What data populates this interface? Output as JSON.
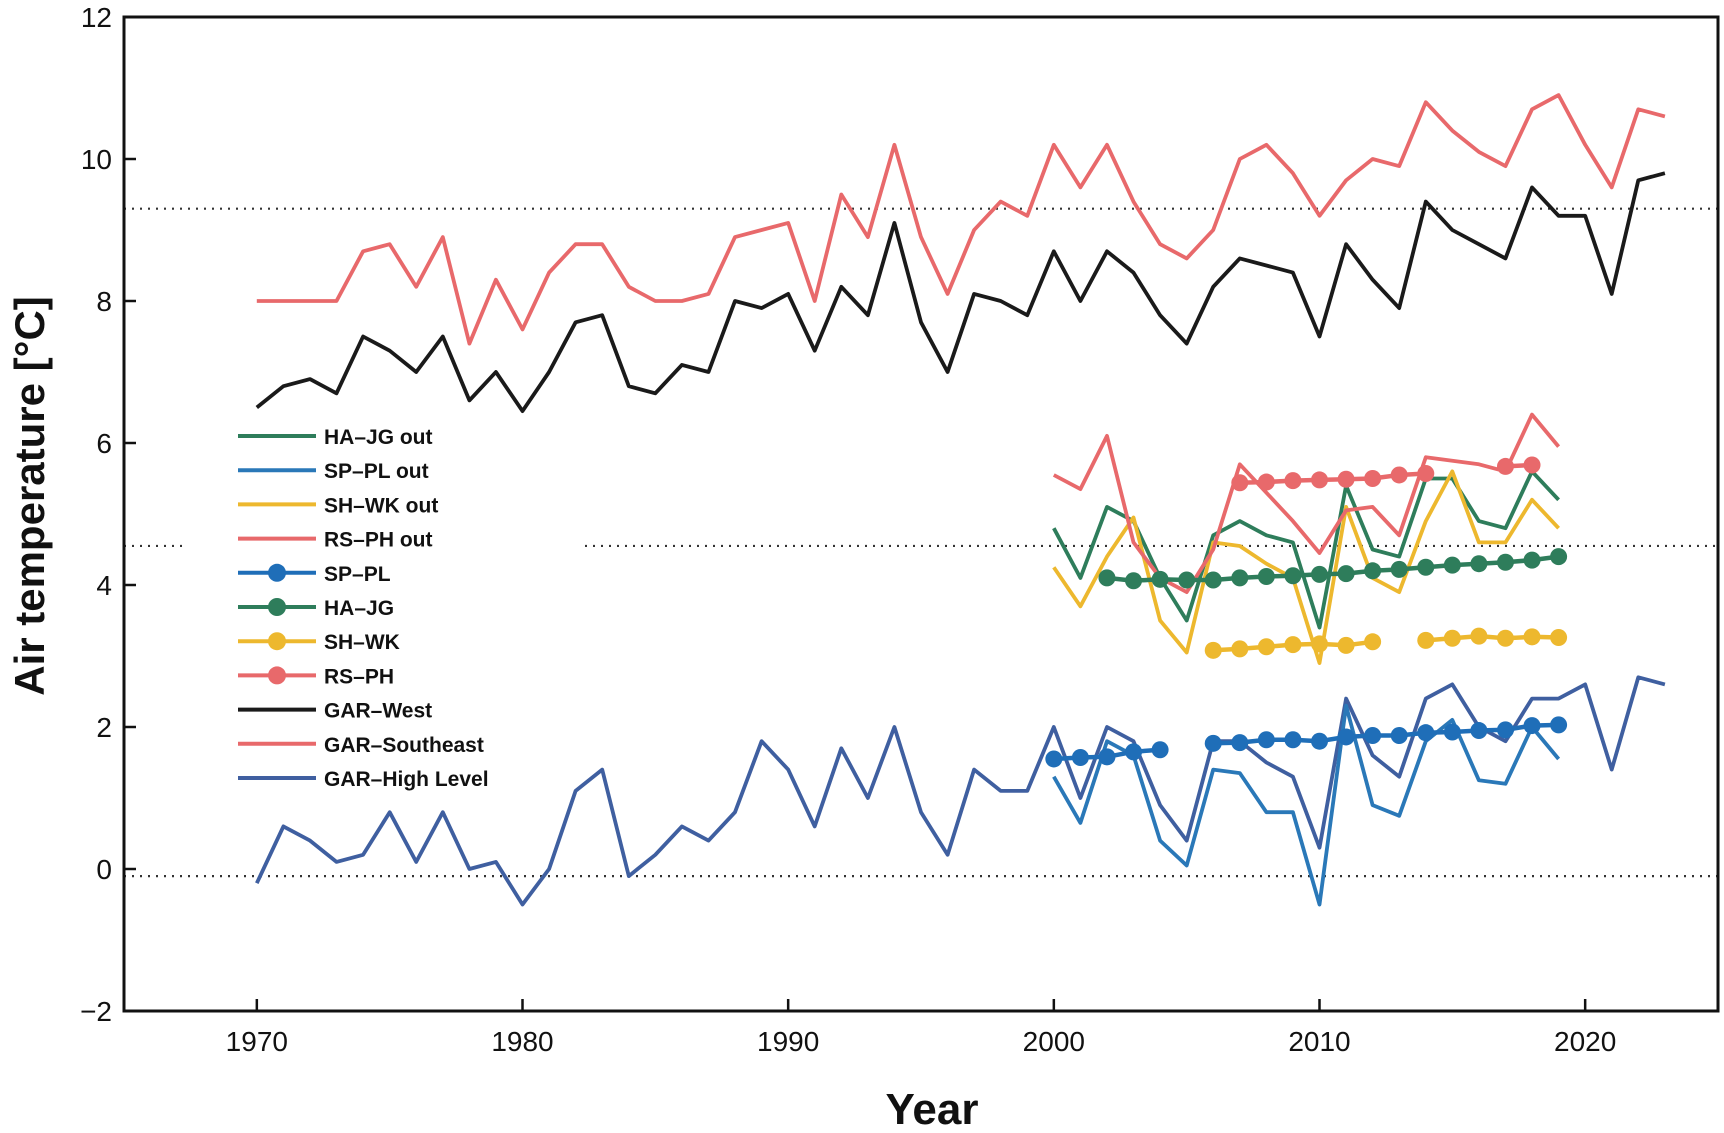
{
  "chart_data": {
    "type": "line",
    "title": "",
    "xlabel": "Year",
    "ylabel": "Air temperature [°C]",
    "xlim": [
      1965,
      2025
    ],
    "ylim": [
      -2,
      12
    ],
    "xticks": [
      1970,
      1980,
      1990,
      2000,
      2010,
      2020
    ],
    "yticks": [
      -2,
      0,
      2,
      4,
      6,
      8,
      10,
      12
    ],
    "ytick_labels": [
      "−2",
      "0",
      "2",
      "4",
      "6",
      "8",
      "10",
      "12"
    ],
    "grid": false,
    "legend_position": "left",
    "reference_lines": [
      9.3,
      4.55,
      -0.1
    ],
    "series": [
      {
        "name": "GAR–West",
        "marker": "none",
        "color": "#1a1a1a",
        "x": [
          1970,
          1971,
          1972,
          1973,
          1974,
          1975,
          1976,
          1977,
          1978,
          1979,
          1980,
          1981,
          1982,
          1983,
          1984,
          1985,
          1986,
          1987,
          1988,
          1989,
          1990,
          1991,
          1992,
          1993,
          1994,
          1995,
          1996,
          1997,
          1998,
          1999,
          2000,
          2001,
          2002,
          2003,
          2004,
          2005,
          2006,
          2007,
          2008,
          2009,
          2010,
          2011,
          2012,
          2013,
          2014,
          2015,
          2016,
          2017,
          2018,
          2019,
          2020,
          2021,
          2022,
          2023
        ],
        "y": [
          6.5,
          6.8,
          6.9,
          6.7,
          7.5,
          7.3,
          7.0,
          7.5,
          6.6,
          7.0,
          6.45,
          7.0,
          7.7,
          7.8,
          6.8,
          6.7,
          7.1,
          7.0,
          8.0,
          7.9,
          8.1,
          7.3,
          8.2,
          7.8,
          9.1,
          7.7,
          7.0,
          8.1,
          8.0,
          7.8,
          8.7,
          8.0,
          8.7,
          8.4,
          7.8,
          7.4,
          8.2,
          8.6,
          8.5,
          8.4,
          7.5,
          8.8,
          8.3,
          7.9,
          9.4,
          9.0,
          8.8,
          8.6,
          9.6,
          9.2,
          9.2,
          8.1,
          9.7,
          9.8
        ]
      },
      {
        "name": "GAR–Southeast",
        "marker": "none",
        "color": "#e8696b",
        "x": [
          1970,
          1971,
          1972,
          1973,
          1974,
          1975,
          1976,
          1977,
          1978,
          1979,
          1980,
          1981,
          1982,
          1983,
          1984,
          1985,
          1986,
          1987,
          1988,
          1989,
          1990,
          1991,
          1992,
          1993,
          1994,
          1995,
          1996,
          1997,
          1998,
          1999,
          2000,
          2001,
          2002,
          2003,
          2004,
          2005,
          2006,
          2007,
          2008,
          2009,
          2010,
          2011,
          2012,
          2013,
          2014,
          2015,
          2016,
          2017,
          2018,
          2019,
          2020,
          2021,
          2022,
          2023
        ],
        "y": [
          8.0,
          8.0,
          8.0,
          8.0,
          8.7,
          8.8,
          8.2,
          8.9,
          7.4,
          8.3,
          7.6,
          8.4,
          8.8,
          8.8,
          8.2,
          8.0,
          8.0,
          8.1,
          8.9,
          9.0,
          9.1,
          8.0,
          9.5,
          8.9,
          10.2,
          8.9,
          8.1,
          9.0,
          9.4,
          9.2,
          10.2,
          9.6,
          10.2,
          9.4,
          8.8,
          8.6,
          9.0,
          10.0,
          10.2,
          9.8,
          9.2,
          9.7,
          10.0,
          9.9,
          10.8,
          10.4,
          10.1,
          9.9,
          10.7,
          10.9,
          10.2,
          9.6,
          10.7,
          10.6
        ]
      },
      {
        "name": "GAR–High Level",
        "marker": "none",
        "color": "#3f5fa0",
        "x": [
          1970,
          1971,
          1972,
          1973,
          1974,
          1975,
          1976,
          1977,
          1978,
          1979,
          1980,
          1981,
          1982,
          1983,
          1984,
          1985,
          1986,
          1987,
          1988,
          1989,
          1990,
          1991,
          1992,
          1993,
          1994,
          1995,
          1996,
          1997,
          1998,
          1999,
          2000,
          2001,
          2002,
          2003,
          2004,
          2005,
          2006,
          2007,
          2008,
          2009,
          2010,
          2011,
          2012,
          2013,
          2014,
          2015,
          2016,
          2017,
          2018,
          2019,
          2020,
          2021,
          2022,
          2023
        ],
        "y": [
          -0.2,
          0.6,
          0.4,
          0.1,
          0.2,
          0.8,
          0.1,
          0.8,
          0.0,
          0.1,
          -0.5,
          0.0,
          1.1,
          1.4,
          -0.1,
          0.2,
          0.6,
          0.4,
          0.8,
          1.8,
          1.4,
          0.6,
          1.7,
          1.0,
          2.0,
          0.8,
          0.2,
          1.4,
          1.1,
          1.1,
          2.0,
          1.0,
          2.0,
          1.8,
          0.9,
          0.4,
          1.8,
          1.8,
          1.5,
          1.3,
          0.3,
          2.4,
          1.6,
          1.3,
          2.4,
          2.6,
          2.0,
          1.8,
          2.4,
          2.4,
          2.6,
          1.4,
          2.7,
          2.6
        ]
      },
      {
        "name": "HA–JG out",
        "marker": "none",
        "color": "#2e7d5b",
        "x": [
          2000,
          2001,
          2002,
          2003,
          2004,
          2005,
          2006,
          2007,
          2008,
          2009,
          2010,
          2011,
          2012,
          2013,
          2014,
          2015,
          2016,
          2017,
          2018,
          2019
        ],
        "y": [
          4.8,
          4.1,
          5.1,
          4.9,
          4.1,
          3.5,
          4.7,
          4.9,
          4.7,
          4.6,
          3.4,
          5.4,
          4.5,
          4.4,
          5.5,
          5.5,
          4.9,
          4.8,
          5.6,
          5.2
        ]
      },
      {
        "name": "SP–PL out",
        "marker": "none",
        "color": "#2a78b8",
        "x": [
          2000,
          2001,
          2002,
          2003,
          2004,
          2005,
          2006,
          2007,
          2008,
          2009,
          2010,
          2011,
          2012,
          2013,
          2014,
          2015,
          2016,
          2017,
          2018,
          2019
        ],
        "y": [
          1.3,
          0.65,
          1.8,
          1.6,
          0.4,
          0.05,
          1.4,
          1.35,
          0.8,
          0.8,
          -0.5,
          2.3,
          0.9,
          0.75,
          1.8,
          2.1,
          1.25,
          1.2,
          2.0,
          1.55
        ]
      },
      {
        "name": "SH–WK out",
        "marker": "none",
        "color": "#edb82e",
        "x": [
          2000,
          2001,
          2002,
          2003,
          2004,
          2005,
          2006,
          2007,
          2008,
          2009,
          2010,
          2011,
          2012,
          2013,
          2014,
          2015,
          2016,
          2017,
          2018,
          2019
        ],
        "y": [
          4.25,
          3.7,
          4.4,
          4.95,
          3.5,
          3.05,
          4.6,
          4.55,
          4.3,
          4.1,
          2.9,
          5.1,
          4.1,
          3.9,
          4.9,
          5.6,
          4.6,
          4.6,
          5.2,
          4.8
        ]
      },
      {
        "name": "RS–PH out",
        "marker": "none",
        "color": "#e8696b",
        "x": [
          2000,
          2001,
          2002,
          2003,
          2004,
          2005,
          2006,
          2007,
          2008,
          2009,
          2010,
          2011,
          2012,
          2013,
          2014,
          2015,
          2016,
          2017,
          2018,
          2019
        ],
        "y": [
          5.55,
          5.35,
          6.1,
          4.6,
          4.1,
          3.9,
          4.5,
          5.7,
          5.3,
          4.9,
          4.45,
          5.05,
          5.1,
          4.7,
          5.8,
          5.75,
          5.7,
          5.6,
          6.4,
          5.95
        ]
      },
      {
        "name": "SP–PL",
        "marker": "circle",
        "color": "#1f6eb8",
        "x": [
          2000,
          2001,
          2002,
          2003,
          2004,
          2006,
          2007,
          2008,
          2009,
          2010,
          2011,
          2012,
          2013,
          2014,
          2015,
          2016,
          2017,
          2018,
          2019
        ],
        "y": [
          1.55,
          1.57,
          1.58,
          1.65,
          1.68,
          1.77,
          1.78,
          1.82,
          1.82,
          1.8,
          1.86,
          1.88,
          1.88,
          1.92,
          1.93,
          1.95,
          1.96,
          2.02,
          2.03
        ],
        "segments": [
          [
            2000,
            2004
          ],
          [
            2006,
            2019
          ]
        ]
      },
      {
        "name": "HA–JG",
        "marker": "circle",
        "color": "#2e7d5b",
        "x": [
          2002,
          2003,
          2004,
          2005,
          2006,
          2007,
          2008,
          2009,
          2010,
          2011,
          2012,
          2013,
          2014,
          2015,
          2016,
          2017,
          2018,
          2019
        ],
        "y": [
          4.1,
          4.06,
          4.08,
          4.07,
          4.07,
          4.1,
          4.12,
          4.13,
          4.15,
          4.16,
          4.2,
          4.22,
          4.25,
          4.28,
          4.3,
          4.32,
          4.35,
          4.4
        ],
        "segments": [
          [
            2002,
            2019
          ]
        ]
      },
      {
        "name": "SH–WK",
        "marker": "circle",
        "color": "#edb82e",
        "x": [
          2006,
          2007,
          2008,
          2009,
          2010,
          2011,
          2012,
          2014,
          2015,
          2016,
          2017,
          2018,
          2019
        ],
        "y": [
          3.08,
          3.1,
          3.13,
          3.16,
          3.17,
          3.15,
          3.2,
          3.22,
          3.25,
          3.28,
          3.25,
          3.27,
          3.26
        ],
        "segments": [
          [
            2006,
            2012
          ],
          [
            2014,
            2019
          ]
        ]
      },
      {
        "name": "RS–PH",
        "marker": "circle",
        "color": "#e8696b",
        "x": [
          2007,
          2008,
          2009,
          2010,
          2011,
          2012,
          2013,
          2014,
          2017,
          2018
        ],
        "y": [
          5.44,
          5.45,
          5.47,
          5.48,
          5.49,
          5.5,
          5.55,
          5.57,
          5.67,
          5.69
        ],
        "segments": [
          [
            2007,
            2014
          ],
          [
            2017,
            2018
          ]
        ]
      }
    ],
    "legend_order": [
      "HA–JG out",
      "SP–PL out",
      "SH–WK out",
      "RS–PH out",
      "SP–PL",
      "HA–JG",
      "SH–WK",
      "RS–PH",
      "GAR–West",
      "GAR–Southeast",
      "GAR–High Level"
    ]
  }
}
